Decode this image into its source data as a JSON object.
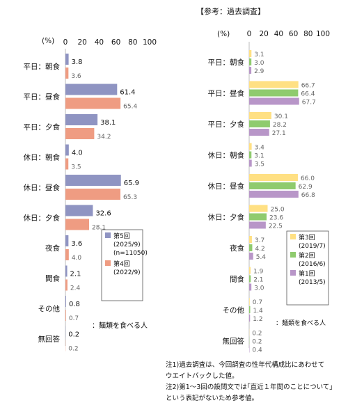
{
  "reference_title": "【参考：過去調査】",
  "unit_left": "(%)",
  "unit_right": "(%)",
  "note_label": "：麺類を食べる人",
  "footnotes": [
    "注1)過去調査は、今回調査の性年代構成比にあわせて",
    "ウエイトバックした値。",
    "注2)第1～3回の設問文では｢直近１年間のことについて｣",
    "という表記がないため参考値。"
  ],
  "colors": {
    "r5": "#8f94c2",
    "r4": "#ef9c82",
    "r3": "#ffe083",
    "r2": "#8fcb6e",
    "r1": "#b896c8"
  },
  "chart_data": [
    {
      "type": "bar",
      "orientation": "horizontal",
      "categories": [
        "平日：朝食",
        "平日：昼食",
        "平日：夕食",
        "休日：朝食",
        "休日：昼食",
        "休日：夕食",
        "夜食",
        "間食",
        "その他",
        "無回答"
      ],
      "xlim": [
        0,
        100
      ],
      "xticks": [
        "0",
        "20",
        "40",
        "60",
        "80",
        "100"
      ],
      "series": [
        {
          "name": "第5回",
          "sub": [
            "(2025/9)",
            "(n=11050)"
          ],
          "color_key": "r5",
          "values": [
            3.8,
            61.4,
            38.1,
            4.0,
            65.9,
            32.6,
            3.6,
            2.1,
            0.8,
            0.2
          ],
          "labels": [
            "3.8",
            "61.4",
            "38.1",
            "4.0",
            "65.9",
            "32.6",
            "3.6",
            "2.1",
            "0.8",
            "0.2"
          ]
        },
        {
          "name": "第4回",
          "sub": [
            "(2022/9)"
          ],
          "color_key": "r4",
          "values": [
            3.6,
            65.4,
            34.2,
            3.5,
            65.3,
            28.1,
            4.0,
            2.4,
            0.7,
            0.2
          ],
          "labels": [
            "3.6",
            "65.4",
            "34.2",
            "3.5",
            "65.3",
            "28.1",
            "4.0",
            "2.4",
            "0.7",
            "0.2"
          ]
        }
      ]
    },
    {
      "type": "bar",
      "orientation": "horizontal",
      "categories": [
        "平日：朝食",
        "平日：昼食",
        "平日：夕食",
        "休日：朝食",
        "休日：昼食",
        "休日：夕食",
        "夜食",
        "間食",
        "その他",
        "無回答"
      ],
      "xlim": [
        0,
        100
      ],
      "xticks": [
        "0",
        "20",
        "40",
        "60",
        "80",
        "100"
      ],
      "series": [
        {
          "name": "第3回",
          "sub": [
            "(2019/7)"
          ],
          "color_key": "r3",
          "values": [
            3.1,
            66.7,
            30.1,
            3.4,
            66.0,
            25.0,
            3.7,
            1.9,
            0.7,
            0.2
          ],
          "labels": [
            "3.1",
            "66.7",
            "30.1",
            "3.4",
            "66.0",
            "25.0",
            "3.7",
            "1.9",
            "0.7",
            "0.2"
          ]
        },
        {
          "name": "第2回",
          "sub": [
            "(2016/6)"
          ],
          "color_key": "r2",
          "values": [
            3.0,
            66.4,
            28.2,
            3.1,
            62.9,
            23.6,
            4.2,
            2.1,
            1.4,
            0.2
          ],
          "labels": [
            "3.0",
            "66.4",
            "28.2",
            "3.1",
            "62.9",
            "23.6",
            "4.2",
            "2.1",
            "1.4",
            "0.2"
          ]
        },
        {
          "name": "第1回",
          "sub": [
            "(2013/5)"
          ],
          "color_key": "r1",
          "values": [
            2.9,
            67.7,
            27.1,
            3.5,
            66.8,
            22.5,
            5.4,
            3.0,
            1.2,
            0.4
          ],
          "labels": [
            "2.9",
            "67.7",
            "27.1",
            "3.5",
            "66.8",
            "22.5",
            "5.4",
            "3.0",
            "1.2",
            "0.4"
          ]
        }
      ]
    }
  ]
}
